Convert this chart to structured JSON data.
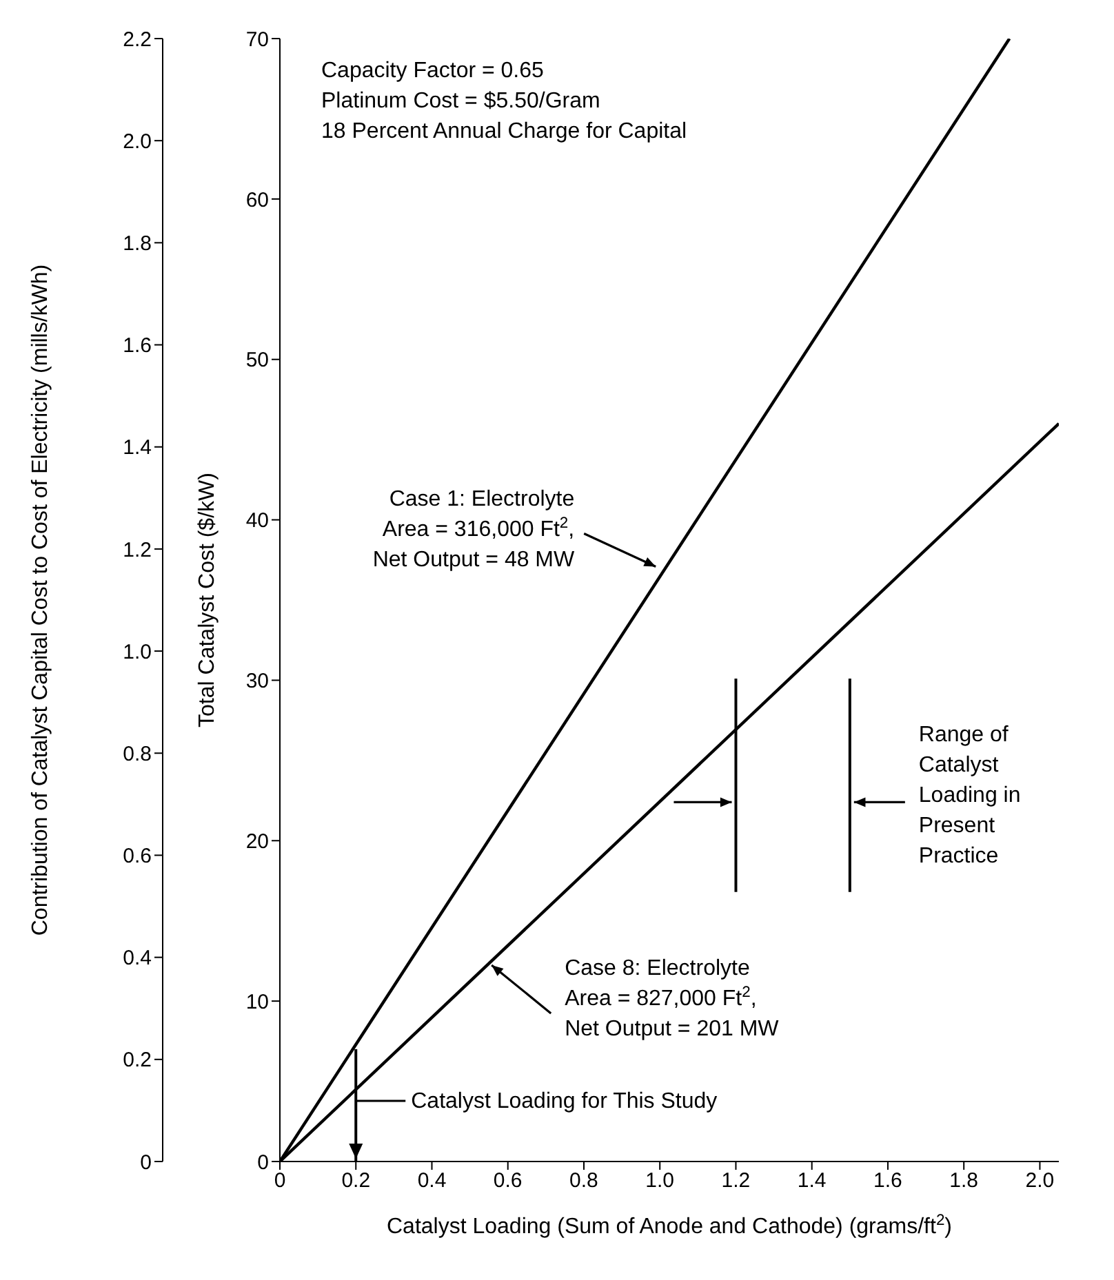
{
  "chart_data": {
    "type": "line",
    "xlabel": "Catalyst Loading (Sum of Anode and Cathode) (grams/ft$^{2}$)",
    "ylabel": "Total Catalyst Cost ($/kW)",
    "y2label": "Contribution of Catalyst Capital Cost to Cost of Electricity (mills/kWh)",
    "series": [
      {
        "color": "#000000",
        "x": [
          0,
          1.92
        ],
        "values": [
          0,
          70
        ]
      },
      {
        "color": "#000000",
        "x": [
          0,
          2.05
        ],
        "values": [
          0,
          46
        ]
      }
    ],
    "xlim": [
      0,
      2.05
    ],
    "xticks": [
      0,
      0.2,
      0.4,
      0.6,
      0.8,
      {
        "value": 1,
        "label": "1.0"
      },
      1.2,
      1.4,
      1.6,
      1.8,
      {
        "value": 2,
        "label": "2.0"
      }
    ],
    "ylim": [
      0,
      70
    ],
    "yticks": [
      0,
      10,
      20,
      30,
      40,
      50,
      60,
      70
    ],
    "y2lim": [
      0,
      2.2
    ],
    "y2ticks": [
      0,
      0.2,
      0.4,
      0.6,
      0.8,
      {
        "value": 1,
        "label": "1.0"
      },
      1.2,
      1.4,
      1.6,
      1.8,
      {
        "value": 2,
        "label": "2.0"
      },
      2.2
    ],
    "ref_lines": [
      {
        "axis": "x",
        "value": 0.2,
        "label": "Catalyst Loading for This Study",
        "color": "#000000"
      },
      {
        "axis": "x",
        "value": 1.2,
        "label": null,
        "color": "#000000"
      },
      {
        "axis": "x",
        "value": 1.5,
        "label": "Range of Catalyst Loading in Present Practice",
        "color": "#000000"
      }
    ],
    "annotations": [
      "Capacity Factor = 0.65",
      "Platinum Cost = $5.50/Gram",
      "18 Percent Annual Charge for Capital",
      {
        "text": "Case 1: Electrolyte Area = 316,000 Ft$^{2}$, Net Output = 48 MW",
        "x": 1.0,
        "y": 37
      },
      {
        "text": "Case 8: Electrolyte Area = 827,000 Ft$^{2}$, Net Output = 201 MW",
        "x": 0.55,
        "y": 12.5
      }
    ],
    "grid": false,
    "legend": false,
    "marker": "none",
    "line_style": "solid"
  }
}
